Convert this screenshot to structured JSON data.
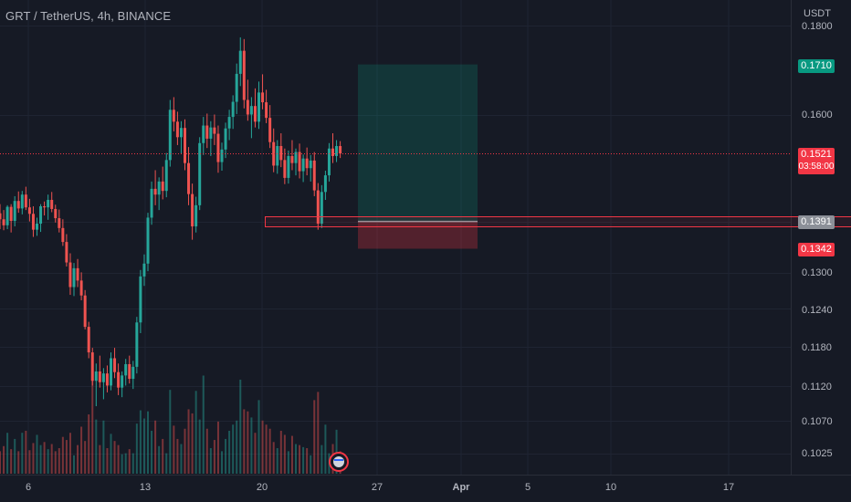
{
  "header": {
    "symbol": "GRT / TetherUS, 4h, BINANCE",
    "unit": "USDT"
  },
  "colors": {
    "background": "#161a25",
    "up": "#26a69a",
    "down": "#ef5350",
    "target": "#089981",
    "stop": "#f23645",
    "entry": "#8c9098",
    "current": "#f23645"
  },
  "price_tags": {
    "target": "0.1710",
    "current": "0.1521",
    "countdown": "03:58:00",
    "entry": "0.1391",
    "stop": "0.1342"
  },
  "chart_data": {
    "type": "candlestick",
    "title": "GRT / TetherUS, 4h, BINANCE",
    "ylabel": "USDT",
    "ylim": [
      0.1,
      0.181
    ],
    "y_scale": "log",
    "y_ticks": [
      "0.1800",
      "0.1600",
      "0.1300",
      "0.1240",
      "0.1180",
      "0.1120",
      "0.1070",
      "0.1025"
    ],
    "x_ticks": [
      "6",
      "13",
      "20",
      "27",
      "Apr",
      "5",
      "10",
      "17"
    ],
    "grid": true,
    "long_position": {
      "entry": 0.1391,
      "target": 0.171,
      "stop": 0.1342
    },
    "last_price": 0.1521,
    "candles": [
      [
        0.1406,
        0.1423,
        0.1377,
        0.1395
      ],
      [
        0.1395,
        0.1412,
        0.1375,
        0.1384
      ],
      [
        0.1384,
        0.1421,
        0.1377,
        0.1418
      ],
      [
        0.1418,
        0.1423,
        0.1371,
        0.1392
      ],
      [
        0.1392,
        0.1438,
        0.1382,
        0.1429
      ],
      [
        0.1429,
        0.1447,
        0.1407,
        0.1415
      ],
      [
        0.1415,
        0.1448,
        0.1404,
        0.1441
      ],
      [
        0.1441,
        0.1456,
        0.1412,
        0.1417
      ],
      [
        0.1417,
        0.1433,
        0.1391,
        0.1405
      ],
      [
        0.1405,
        0.1419,
        0.1363,
        0.1376
      ],
      [
        0.1376,
        0.1398,
        0.1365,
        0.1387
      ],
      [
        0.1387,
        0.1423,
        0.1372,
        0.1419
      ],
      [
        0.1419,
        0.1428,
        0.1402,
        0.1417
      ],
      [
        0.1417,
        0.1441,
        0.1394,
        0.1431
      ],
      [
        0.1431,
        0.1446,
        0.1408,
        0.1414
      ],
      [
        0.1414,
        0.1422,
        0.1389,
        0.1397
      ],
      [
        0.1397,
        0.1413,
        0.1371,
        0.1379
      ],
      [
        0.1379,
        0.1395,
        0.1347,
        0.1354
      ],
      [
        0.1354,
        0.1368,
        0.1311,
        0.1318
      ],
      [
        0.1318,
        0.1334,
        0.1263,
        0.1276
      ],
      [
        0.1276,
        0.1317,
        0.1261,
        0.1308
      ],
      [
        0.1308,
        0.1324,
        0.1276,
        0.1287
      ],
      [
        0.1287,
        0.1301,
        0.1254,
        0.1262
      ],
      [
        0.1262,
        0.1271,
        0.1207,
        0.1211
      ],
      [
        0.1211,
        0.1219,
        0.1162,
        0.1171
      ],
      [
        0.1171,
        0.1178,
        0.1121,
        0.1128
      ],
      [
        0.1128,
        0.1154,
        0.1091,
        0.1142
      ],
      [
        0.1142,
        0.1166,
        0.1118,
        0.1126
      ],
      [
        0.1126,
        0.1147,
        0.1101,
        0.1139
      ],
      [
        0.1139,
        0.1151,
        0.1111,
        0.1121
      ],
      [
        0.1121,
        0.1171,
        0.1114,
        0.1162
      ],
      [
        0.1162,
        0.1178,
        0.1132,
        0.1141
      ],
      [
        0.1141,
        0.1154,
        0.1107,
        0.1118
      ],
      [
        0.1118,
        0.1142,
        0.1104,
        0.1136
      ],
      [
        0.1136,
        0.1161,
        0.1121,
        0.1153
      ],
      [
        0.1153,
        0.1166,
        0.1124,
        0.1131
      ],
      [
        0.1131,
        0.1158,
        0.1116,
        0.1149
      ],
      [
        0.1149,
        0.1227,
        0.1139,
        0.1218
      ],
      [
        0.1218,
        0.1305,
        0.1201,
        0.1294
      ],
      [
        0.1294,
        0.1332,
        0.1278,
        0.1316
      ],
      [
        0.1316,
        0.1407,
        0.1303,
        0.1398
      ],
      [
        0.1398,
        0.1466,
        0.1385,
        0.1452
      ],
      [
        0.1452,
        0.1488,
        0.1421,
        0.1441
      ],
      [
        0.1441,
        0.1474,
        0.1412,
        0.1466
      ],
      [
        0.1466,
        0.1495,
        0.1432,
        0.1448
      ],
      [
        0.1448,
        0.1522,
        0.1436,
        0.1508
      ],
      [
        0.1508,
        0.1632,
        0.1495,
        0.1611
      ],
      [
        0.1611,
        0.1638,
        0.1566,
        0.1586
      ],
      [
        0.1586,
        0.1607,
        0.1538,
        0.1554
      ],
      [
        0.1554,
        0.1587,
        0.1521,
        0.1573
      ],
      [
        0.1573,
        0.1591,
        0.1488,
        0.1502
      ],
      [
        0.1502,
        0.1534,
        0.1421,
        0.1442
      ],
      [
        0.1442,
        0.1462,
        0.1358,
        0.1382
      ],
      [
        0.1382,
        0.1437,
        0.1371,
        0.1421
      ],
      [
        0.1421,
        0.1554,
        0.1412,
        0.1542
      ],
      [
        0.1542,
        0.1596,
        0.1518,
        0.1578
      ],
      [
        0.1578,
        0.1603,
        0.1532,
        0.1551
      ],
      [
        0.1551,
        0.1587,
        0.1516,
        0.1574
      ],
      [
        0.1574,
        0.1601,
        0.1538,
        0.1561
      ],
      [
        0.1561,
        0.1578,
        0.1483,
        0.1504
      ],
      [
        0.1504,
        0.1543,
        0.1487,
        0.1529
      ],
      [
        0.1529,
        0.1584,
        0.1512,
        0.1572
      ],
      [
        0.1572,
        0.1611,
        0.1548,
        0.1596
      ],
      [
        0.1596,
        0.1642,
        0.1571,
        0.1628
      ],
      [
        0.1628,
        0.1712,
        0.1602,
        0.1689
      ],
      [
        0.1689,
        0.1772,
        0.1662,
        0.1741
      ],
      [
        0.1741,
        0.1768,
        0.1614,
        0.1632
      ],
      [
        0.1632,
        0.1676,
        0.1588,
        0.1601
      ],
      [
        0.1601,
        0.1638,
        0.1552,
        0.1619
      ],
      [
        0.1619,
        0.1657,
        0.1574,
        0.1586
      ],
      [
        0.1586,
        0.1672,
        0.1571,
        0.1648
      ],
      [
        0.1648,
        0.1688,
        0.1612,
        0.1627
      ],
      [
        0.1627,
        0.1654,
        0.1583,
        0.1594
      ],
      [
        0.1594,
        0.1621,
        0.1532,
        0.1544
      ],
      [
        0.1544,
        0.1572,
        0.1484,
        0.1497
      ],
      [
        0.1497,
        0.1548,
        0.1481,
        0.1536
      ],
      [
        0.1536,
        0.1562,
        0.1494,
        0.1508
      ],
      [
        0.1508,
        0.1531,
        0.1461,
        0.1473
      ],
      [
        0.1473,
        0.1527,
        0.1462,
        0.1516
      ],
      [
        0.1516,
        0.1548,
        0.1488,
        0.1502
      ],
      [
        0.1502,
        0.1531,
        0.1478,
        0.1524
      ],
      [
        0.1524,
        0.1541,
        0.1472,
        0.1486
      ],
      [
        0.1486,
        0.1519,
        0.1465,
        0.1511
      ],
      [
        0.1511,
        0.1533,
        0.1478,
        0.1492
      ],
      [
        0.1492,
        0.1518,
        0.1466,
        0.1507
      ],
      [
        0.1507,
        0.1524,
        0.1438,
        0.1449
      ],
      [
        0.1449,
        0.1463,
        0.1376,
        0.1387
      ],
      [
        0.1387,
        0.1459,
        0.1379,
        0.1446
      ],
      [
        0.1446,
        0.1487,
        0.1431,
        0.1478
      ],
      [
        0.1478,
        0.1542,
        0.1466,
        0.1531
      ],
      [
        0.1531,
        0.1562,
        0.1502,
        0.1516
      ],
      [
        0.1516,
        0.1548,
        0.1504,
        0.1536
      ],
      [
        0.1536,
        0.1546,
        0.1512,
        0.1521
      ]
    ],
    "volume": [
      22,
      27,
      40,
      24,
      34,
      22,
      40,
      42,
      23,
      30,
      38,
      28,
      31,
      24,
      29,
      22,
      25,
      36,
      33,
      40,
      18,
      28,
      46,
      32,
      58,
      100,
      53,
      28,
      52,
      25,
      39,
      32,
      28,
      19,
      20,
      24,
      20,
      49,
      62,
      54,
      61,
      42,
      52,
      27,
      34,
      20,
      82,
      47,
      34,
      29,
      44,
      63,
      59,
      81,
      53,
      96,
      44,
      25,
      33,
      51,
      22,
      34,
      42,
      48,
      52,
      92,
      63,
      61,
      55,
      40,
      72,
      52,
      48,
      44,
      31,
      25,
      42,
      38,
      22,
      37,
      29,
      28,
      26,
      25,
      18,
      72,
      80,
      28,
      48,
      20,
      29,
      43,
      22
    ]
  }
}
